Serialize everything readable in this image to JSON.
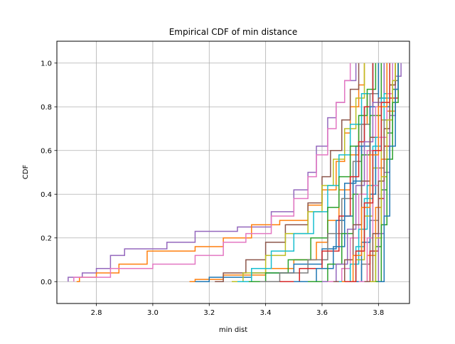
{
  "chart_data": {
    "type": "line",
    "title": "Empirical CDF of min distance",
    "xlabel": "min dist",
    "ylabel": "CDF",
    "xlim": [
      2.66,
      3.91
    ],
    "ylim": [
      -0.1,
      1.1
    ],
    "x_ticks": [
      2.8,
      3.0,
      3.2,
      3.4,
      3.6,
      3.8
    ],
    "x_tick_labels": [
      "2.8",
      "3.0",
      "3.2",
      "3.4",
      "3.6",
      "3.8"
    ],
    "y_ticks": [
      0.0,
      0.2,
      0.4,
      0.6,
      0.8,
      1.0
    ],
    "y_tick_labels": [
      "0.0",
      "0.2",
      "0.4",
      "0.6",
      "0.8",
      "1.0"
    ],
    "grid": true,
    "step": "post",
    "series": [
      {
        "color": "#9467bd",
        "points": [
          [
            2.7,
            0.0
          ],
          [
            2.7,
            0.02
          ],
          [
            2.75,
            0.04
          ],
          [
            2.8,
            0.06
          ],
          [
            2.85,
            0.12
          ],
          [
            2.9,
            0.15
          ],
          [
            3.05,
            0.18
          ],
          [
            3.15,
            0.23
          ],
          [
            3.3,
            0.25
          ],
          [
            3.42,
            0.32
          ],
          [
            3.5,
            0.42
          ],
          [
            3.55,
            0.5
          ],
          [
            3.58,
            0.62
          ],
          [
            3.62,
            0.75
          ],
          [
            3.65,
            0.82
          ],
          [
            3.68,
            0.92
          ],
          [
            3.72,
            1.0
          ]
        ]
      },
      {
        "color": "#ff7f0e",
        "points": [
          [
            2.73,
            0.0
          ],
          [
            2.74,
            0.02
          ],
          [
            2.8,
            0.04
          ],
          [
            2.88,
            0.08
          ],
          [
            2.98,
            0.14
          ],
          [
            3.15,
            0.16
          ],
          [
            3.25,
            0.2
          ],
          [
            3.35,
            0.26
          ],
          [
            3.45,
            0.28
          ],
          [
            3.55,
            0.35
          ],
          [
            3.6,
            0.42
          ],
          [
            3.65,
            0.55
          ],
          [
            3.68,
            0.68
          ],
          [
            3.7,
            0.8
          ],
          [
            3.73,
            0.9
          ],
          [
            3.75,
            1.0
          ]
        ]
      },
      {
        "color": "#e377c2",
        "points": [
          [
            2.72,
            0.0
          ],
          [
            2.72,
            0.02
          ],
          [
            2.85,
            0.06
          ],
          [
            3.0,
            0.08
          ],
          [
            3.15,
            0.12
          ],
          [
            3.25,
            0.18
          ],
          [
            3.33,
            0.22
          ],
          [
            3.42,
            0.3
          ],
          [
            3.5,
            0.38
          ],
          [
            3.55,
            0.48
          ],
          [
            3.58,
            0.58
          ],
          [
            3.62,
            0.7
          ],
          [
            3.65,
            0.82
          ],
          [
            3.68,
            0.92
          ],
          [
            3.7,
            1.0
          ]
        ]
      },
      {
        "color": "#ff7f0e",
        "points": [
          [
            3.13,
            0.0
          ],
          [
            3.15,
            0.01
          ],
          [
            3.25,
            0.03
          ],
          [
            3.4,
            0.06
          ],
          [
            3.5,
            0.1
          ],
          [
            3.58,
            0.18
          ],
          [
            3.62,
            0.28
          ],
          [
            3.66,
            0.42
          ],
          [
            3.7,
            0.58
          ],
          [
            3.73,
            0.72
          ],
          [
            3.76,
            0.86
          ],
          [
            3.78,
            1.0
          ]
        ]
      },
      {
        "color": "#1f77b4",
        "points": [
          [
            3.15,
            0.0
          ],
          [
            3.2,
            0.02
          ],
          [
            3.35,
            0.04
          ],
          [
            3.5,
            0.08
          ],
          [
            3.6,
            0.15
          ],
          [
            3.65,
            0.28
          ],
          [
            3.68,
            0.45
          ],
          [
            3.72,
            0.62
          ],
          [
            3.75,
            0.8
          ],
          [
            3.78,
            1.0
          ]
        ]
      },
      {
        "color": "#8c564b",
        "points": [
          [
            3.22,
            0.0
          ],
          [
            3.25,
            0.04
          ],
          [
            3.33,
            0.1
          ],
          [
            3.4,
            0.18
          ],
          [
            3.47,
            0.26
          ],
          [
            3.55,
            0.36
          ],
          [
            3.6,
            0.48
          ],
          [
            3.63,
            0.6
          ],
          [
            3.67,
            0.74
          ],
          [
            3.7,
            0.88
          ],
          [
            3.73,
            1.0
          ]
        ]
      },
      {
        "color": "#bcbd22",
        "points": [
          [
            3.28,
            0.0
          ],
          [
            3.32,
            0.04
          ],
          [
            3.4,
            0.12
          ],
          [
            3.47,
            0.22
          ],
          [
            3.55,
            0.32
          ],
          [
            3.6,
            0.44
          ],
          [
            3.64,
            0.56
          ],
          [
            3.68,
            0.7
          ],
          [
            3.72,
            0.84
          ],
          [
            3.75,
            1.0
          ]
        ]
      },
      {
        "color": "#17becf",
        "points": [
          [
            3.3,
            0.0
          ],
          [
            3.35,
            0.06
          ],
          [
            3.42,
            0.14
          ],
          [
            3.5,
            0.22
          ],
          [
            3.57,
            0.32
          ],
          [
            3.62,
            0.44
          ],
          [
            3.66,
            0.58
          ],
          [
            3.7,
            0.72
          ],
          [
            3.74,
            0.86
          ],
          [
            3.78,
            1.0
          ]
        ]
      },
      {
        "color": "#2ca02c",
        "points": [
          [
            3.34,
            0.0
          ],
          [
            3.4,
            0.04
          ],
          [
            3.48,
            0.1
          ],
          [
            3.56,
            0.2
          ],
          [
            3.62,
            0.34
          ],
          [
            3.66,
            0.48
          ],
          [
            3.7,
            0.62
          ],
          [
            3.73,
            0.76
          ],
          [
            3.76,
            0.88
          ],
          [
            3.79,
            1.0
          ]
        ]
      },
      {
        "color": "#7f7f7f",
        "points": [
          [
            3.38,
            0.0
          ],
          [
            3.45,
            0.04
          ],
          [
            3.55,
            0.1
          ],
          [
            3.62,
            0.22
          ],
          [
            3.67,
            0.38
          ],
          [
            3.71,
            0.55
          ],
          [
            3.74,
            0.72
          ],
          [
            3.77,
            0.86
          ],
          [
            3.8,
            1.0
          ]
        ]
      },
      {
        "color": "#d62728",
        "points": [
          [
            3.45,
            0.0
          ],
          [
            3.52,
            0.06
          ],
          [
            3.6,
            0.14
          ],
          [
            3.66,
            0.3
          ],
          [
            3.7,
            0.48
          ],
          [
            3.73,
            0.64
          ],
          [
            3.75,
            0.8
          ],
          [
            3.78,
            1.0
          ]
        ]
      },
      {
        "color": "#1f77b4",
        "points": [
          [
            3.5,
            0.0
          ],
          [
            3.58,
            0.06
          ],
          [
            3.64,
            0.16
          ],
          [
            3.68,
            0.3
          ],
          [
            3.71,
            0.46
          ],
          [
            3.74,
            0.62
          ],
          [
            3.77,
            0.8
          ],
          [
            3.8,
            1.0
          ]
        ]
      },
      {
        "color": "#2ca02c",
        "points": [
          [
            3.55,
            0.0
          ],
          [
            3.62,
            0.08
          ],
          [
            3.67,
            0.22
          ],
          [
            3.71,
            0.4
          ],
          [
            3.74,
            0.58
          ],
          [
            3.77,
            0.76
          ],
          [
            3.81,
            1.0
          ]
        ]
      },
      {
        "color": "#9467bd",
        "points": [
          [
            3.6,
            0.0
          ],
          [
            3.65,
            0.08
          ],
          [
            3.69,
            0.24
          ],
          [
            3.72,
            0.44
          ],
          [
            3.75,
            0.64
          ],
          [
            3.78,
            0.82
          ],
          [
            3.82,
            1.0
          ]
        ]
      },
      {
        "color": "#e377c2",
        "points": [
          [
            3.62,
            0.0
          ],
          [
            3.67,
            0.06
          ],
          [
            3.7,
            0.2
          ],
          [
            3.73,
            0.4
          ],
          [
            3.76,
            0.6
          ],
          [
            3.79,
            0.8
          ],
          [
            3.83,
            1.0
          ]
        ]
      },
      {
        "color": "#8c564b",
        "points": [
          [
            3.64,
            0.0
          ],
          [
            3.68,
            0.1
          ],
          [
            3.71,
            0.26
          ],
          [
            3.74,
            0.46
          ],
          [
            3.77,
            0.66
          ],
          [
            3.8,
            0.84
          ],
          [
            3.83,
            1.0
          ]
        ]
      },
      {
        "color": "#17becf",
        "points": [
          [
            3.66,
            0.0
          ],
          [
            3.7,
            0.08
          ],
          [
            3.73,
            0.24
          ],
          [
            3.76,
            0.44
          ],
          [
            3.79,
            0.66
          ],
          [
            3.82,
            0.86
          ],
          [
            3.85,
            1.0
          ]
        ]
      },
      {
        "color": "#bcbd22",
        "points": [
          [
            3.68,
            0.0
          ],
          [
            3.72,
            0.1
          ],
          [
            3.75,
            0.3
          ],
          [
            3.78,
            0.52
          ],
          [
            3.81,
            0.74
          ],
          [
            3.84,
            0.9
          ],
          [
            3.86,
            1.0
          ]
        ]
      },
      {
        "color": "#7f7f7f",
        "points": [
          [
            3.7,
            0.0
          ],
          [
            3.74,
            0.08
          ],
          [
            3.77,
            0.28
          ],
          [
            3.8,
            0.52
          ],
          [
            3.82,
            0.74
          ],
          [
            3.85,
            0.92
          ],
          [
            3.87,
            1.0
          ]
        ]
      },
      {
        "color": "#ff7f0e",
        "points": [
          [
            3.72,
            0.0
          ],
          [
            3.76,
            0.12
          ],
          [
            3.79,
            0.34
          ],
          [
            3.81,
            0.56
          ],
          [
            3.83,
            0.78
          ],
          [
            3.86,
            1.0
          ]
        ]
      },
      {
        "color": "#d62728",
        "points": [
          [
            3.74,
            0.0
          ],
          [
            3.77,
            0.14
          ],
          [
            3.8,
            0.38
          ],
          [
            3.82,
            0.62
          ],
          [
            3.84,
            0.84
          ],
          [
            3.87,
            1.0
          ]
        ]
      },
      {
        "color": "#2ca02c",
        "points": [
          [
            3.76,
            0.0
          ],
          [
            3.79,
            0.16
          ],
          [
            3.81,
            0.42
          ],
          [
            3.83,
            0.68
          ],
          [
            3.85,
            0.88
          ],
          [
            3.87,
            1.0
          ]
        ]
      },
      {
        "color": "#9467bd",
        "points": [
          [
            3.78,
            0.0
          ],
          [
            3.8,
            0.22
          ],
          [
            3.82,
            0.5
          ],
          [
            3.84,
            0.76
          ],
          [
            3.86,
            0.94
          ],
          [
            3.88,
            1.0
          ]
        ]
      },
      {
        "color": "#1f77b4",
        "points": [
          [
            3.71,
            0.0
          ],
          [
            3.74,
            0.18
          ],
          [
            3.77,
            0.4
          ],
          [
            3.79,
            0.6
          ],
          [
            3.81,
            0.8
          ],
          [
            3.84,
            1.0
          ]
        ]
      },
      {
        "color": "#e377c2",
        "points": [
          [
            3.73,
            0.0
          ],
          [
            3.76,
            0.2
          ],
          [
            3.78,
            0.44
          ],
          [
            3.8,
            0.66
          ],
          [
            3.83,
            0.86
          ],
          [
            3.85,
            1.0
          ]
        ]
      },
      {
        "color": "#8c564b",
        "points": [
          [
            3.75,
            0.0
          ],
          [
            3.78,
            0.22
          ],
          [
            3.8,
            0.46
          ],
          [
            3.82,
            0.7
          ],
          [
            3.84,
            0.9
          ],
          [
            3.86,
            1.0
          ]
        ]
      },
      {
        "color": "#17becf",
        "points": [
          [
            3.69,
            0.0
          ],
          [
            3.72,
            0.16
          ],
          [
            3.75,
            0.38
          ],
          [
            3.78,
            0.62
          ],
          [
            3.81,
            0.84
          ],
          [
            3.84,
            1.0
          ]
        ]
      },
      {
        "color": "#bcbd22",
        "points": [
          [
            3.77,
            0.0
          ],
          [
            3.79,
            0.2
          ],
          [
            3.81,
            0.48
          ],
          [
            3.83,
            0.74
          ],
          [
            3.85,
            0.92
          ],
          [
            3.86,
            1.0
          ]
        ]
      },
      {
        "color": "#ff7f0e",
        "points": [
          [
            3.67,
            0.0
          ],
          [
            3.71,
            0.12
          ],
          [
            3.74,
            0.34
          ],
          [
            3.77,
            0.58
          ],
          [
            3.8,
            0.8
          ],
          [
            3.83,
            1.0
          ]
        ]
      },
      {
        "color": "#2ca02c",
        "points": [
          [
            3.79,
            0.0
          ],
          [
            3.81,
            0.26
          ],
          [
            3.83,
            0.56
          ],
          [
            3.85,
            0.82
          ],
          [
            3.87,
            1.0
          ]
        ]
      },
      {
        "color": "#d62728",
        "points": [
          [
            3.68,
            0.0
          ],
          [
            3.72,
            0.14
          ],
          [
            3.75,
            0.36
          ],
          [
            3.78,
            0.6
          ],
          [
            3.81,
            0.82
          ],
          [
            3.84,
            1.0
          ]
        ]
      },
      {
        "color": "#1f77b4",
        "points": [
          [
            3.8,
            0.0
          ],
          [
            3.82,
            0.3
          ],
          [
            3.84,
            0.62
          ],
          [
            3.86,
            0.88
          ],
          [
            3.87,
            1.0
          ]
        ]
      }
    ]
  }
}
